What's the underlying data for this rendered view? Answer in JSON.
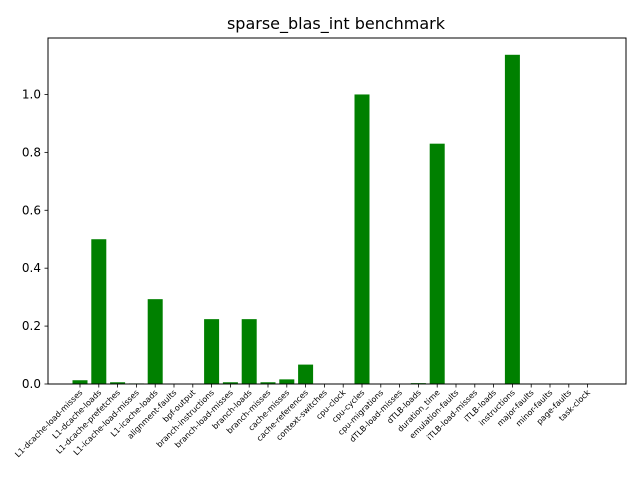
{
  "chart_data": {
    "type": "bar",
    "title": "sparse_blas_int benchmark",
    "xlabel": "",
    "ylabel": "",
    "ylim": [
      0,
      1.195
    ],
    "yticks": [
      0.0,
      0.2,
      0.4,
      0.6,
      0.8,
      1.0
    ],
    "ytick_labels": [
      "0.0",
      "0.2",
      "0.4",
      "0.6",
      "0.8",
      "1.0"
    ],
    "grid": false,
    "bar_color": "#008000",
    "categories": [
      "L1-dcache-load-misses",
      "L1-dcache-loads",
      "L1-dcache-prefetches",
      "L1-icache-load-misses",
      "L1-icache-loads",
      "alignment-faults",
      "bpf-output",
      "branch-instructions",
      "branch-load-misses",
      "branch-loads",
      "branch-misses",
      "cache-misses",
      "cache-references",
      "context-switches",
      "cpu-clock",
      "cpu-cycles",
      "cpu-migrations",
      "dTLB-load-misses",
      "dTLB-loads",
      "duration_time",
      "emulation-faults",
      "iTLB-load-misses",
      "iTLB-loads",
      "instructions",
      "major-faults",
      "minor-faults",
      "page-faults",
      "task-clock"
    ],
    "values": [
      0.013,
      0.5,
      0.006,
      0.002,
      0.293,
      0,
      0,
      0.224,
      0.006,
      0.224,
      0.006,
      0.016,
      0.067,
      0,
      0,
      1.0,
      0,
      0,
      0.003,
      0.83,
      0,
      0,
      0,
      1.137,
      0,
      0,
      0,
      0
    ]
  }
}
